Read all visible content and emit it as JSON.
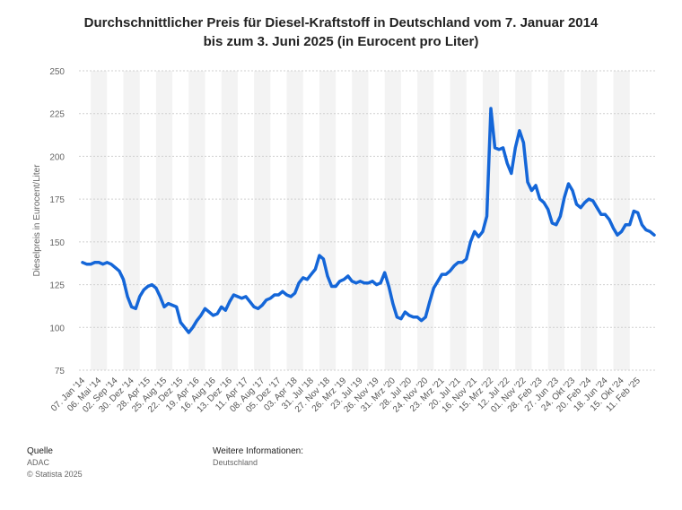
{
  "chart_data": {
    "type": "line",
    "title": "Durchschnittlicher Preis für Diesel-Kraftstoff in Deutschland vom 7. Januar 2014 bis zum 3. Juni 2025 (in Eurocent pro Liter)",
    "y_label": "Dieselpreis in Eurocent/Liter",
    "categories": [
      "07. Jan '14",
      null,
      null,
      null,
      "06. Mai '14",
      null,
      null,
      null,
      "02. Sep '14",
      null,
      null,
      null,
      "30. Dez '14",
      null,
      null,
      null,
      "28. Apr '15",
      null,
      null,
      null,
      "25. Aug '15",
      null,
      null,
      null,
      "22. Dez '15",
      null,
      null,
      null,
      "19. Apr '16",
      null,
      null,
      null,
      "16. Aug '16",
      null,
      null,
      null,
      "13. Dez '16",
      null,
      null,
      null,
      "11. Apr '17",
      null,
      null,
      null,
      "08. Aug '17",
      null,
      null,
      null,
      "05. Dez '17",
      null,
      null,
      null,
      "03. Apr '18",
      null,
      null,
      null,
      "31. Jul '18",
      null,
      null,
      null,
      "27. Nov '18",
      null,
      null,
      null,
      "26. Mrz '19",
      null,
      null,
      null,
      "23. Jul '19",
      null,
      null,
      null,
      "26. Nov '19",
      null,
      null,
      null,
      "31. Mrz '20",
      null,
      null,
      null,
      "28. Jul '20",
      null,
      null,
      null,
      "24. Nov '20",
      null,
      null,
      null,
      "23. Mrz '21",
      null,
      null,
      null,
      "20. Jul '21",
      null,
      null,
      null,
      "16. Nov '21",
      null,
      null,
      null,
      "15. Mrz '22",
      null,
      null,
      null,
      "12. Jul '22",
      null,
      null,
      null,
      "01. Nov '22",
      null,
      null,
      null,
      "28. Feb '23",
      null,
      null,
      null,
      "27. Jun '23",
      null,
      null,
      null,
      "24. Okt '23",
      null,
      null,
      null,
      "20. Feb '24",
      null,
      null,
      null,
      "18. Jun '24",
      null,
      null,
      null,
      "15. Okt '24",
      null,
      null,
      null,
      "11. Feb '25",
      null,
      null,
      null,
      null
    ],
    "series": [
      {
        "name": "Dieselpreis",
        "color": "#1466d8",
        "values": [
          138,
          137,
          137,
          138,
          138,
          137,
          138,
          137,
          135,
          133,
          128,
          118,
          112,
          111,
          118,
          122,
          124,
          125,
          123,
          118,
          112,
          114,
          113,
          112,
          103,
          100,
          97,
          100,
          104,
          107,
          111,
          109,
          107,
          108,
          112,
          110,
          115,
          119,
          118,
          117,
          118,
          115,
          112,
          111,
          113,
          116,
          117,
          119,
          119,
          121,
          119,
          118,
          120,
          126,
          129,
          128,
          131,
          134,
          142,
          140,
          130,
          124,
          124,
          127,
          128,
          130,
          127,
          126,
          127,
          126,
          126,
          127,
          125,
          126,
          132,
          124,
          114,
          106,
          105,
          109,
          107,
          106,
          106,
          104,
          106,
          115,
          123,
          127,
          131,
          131,
          133,
          136,
          138,
          138,
          140,
          150,
          156,
          153,
          156,
          165,
          228,
          205,
          204,
          205,
          196,
          190,
          205,
          215,
          208,
          185,
          180,
          183,
          175,
          173,
          169,
          161,
          160,
          165,
          176,
          184,
          180,
          172,
          170,
          173,
          175,
          174,
          170,
          166,
          166,
          163,
          158,
          154,
          156,
          160,
          160,
          168,
          167,
          160,
          157,
          156,
          154
        ]
      }
    ],
    "ylim": [
      75,
      250
    ],
    "yticks": [
      75,
      100,
      125,
      150,
      175,
      200,
      225,
      250
    ],
    "grid": true
  },
  "source": {
    "heading": "Quelle",
    "name": "ADAC",
    "copyright": "© Statista 2025"
  },
  "info": {
    "heading": "Weitere Informationen:",
    "text": "Deutschland"
  }
}
